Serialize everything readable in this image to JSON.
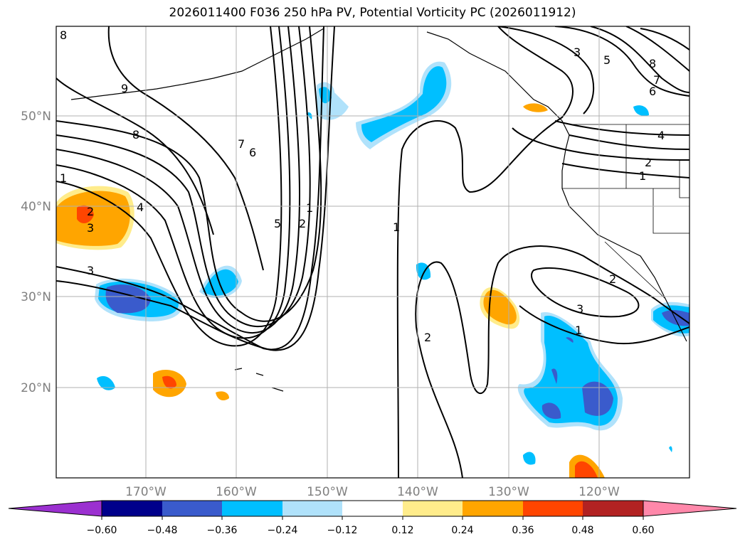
{
  "title": "2026011400 F036 250 hPa PV, Potential Vorticity PC (2026011912)",
  "map": {
    "lat_labels": [
      "50°N",
      "40°N",
      "30°N",
      "20°N"
    ],
    "lon_labels": [
      "170°W",
      "160°W",
      "150°W",
      "140°W",
      "130°W",
      "120°W"
    ],
    "contour_labels": [
      "8",
      "9",
      "8",
      "7",
      "6",
      "1",
      "2",
      "5",
      "4",
      "3",
      "2",
      "1",
      "3",
      "1",
      "2",
      "3",
      "5",
      "8",
      "7",
      "6",
      "4",
      "2",
      "1",
      "2",
      "3",
      "1"
    ]
  },
  "colorbar": {
    "ticks": [
      "−0.60",
      "−0.48",
      "−0.36",
      "−0.24",
      "−0.12",
      "0.12",
      "0.24",
      "0.36",
      "0.48",
      "0.60"
    ],
    "colors": [
      "#9b30d0",
      "#00008b",
      "#3a5bcc",
      "#00bfff",
      "#b0e2fb",
      "#ffffff",
      "#ffec8b",
      "#ffa500",
      "#ff4500",
      "#b22222",
      "#ff88aa"
    ]
  }
}
